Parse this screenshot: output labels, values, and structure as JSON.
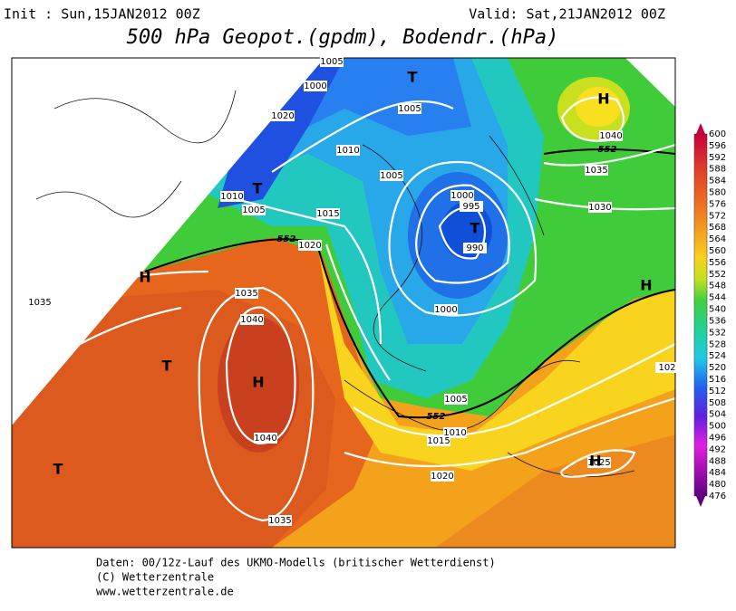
{
  "header": {
    "init": "Init : Sun,15JAN2012 00Z",
    "valid": "Valid: Sat,21JAN2012 00Z",
    "title": "500 hPa Geopot.(gpdm), Bodendr.(hPa)"
  },
  "footer": [
    "Daten: 00/12z-Lauf des UKMO-Modells (britischer Wetterdienst)",
    "(C) Wetterzentrale",
    "www.wetterzentrale.de"
  ],
  "map": {
    "pressure_labels": [
      1005,
      1000,
      1020,
      1005,
      1010,
      1005,
      1000,
      995,
      990,
      1010,
      1005,
      1015,
      1020,
      1035,
      1035,
      1040,
      1000,
      1005,
      1010,
      1015,
      1020,
      1040,
      1035,
      1040,
      1035,
      1030,
      1025,
      102
    ],
    "height_labels": [
      552,
      552,
      552
    ],
    "centers": [
      "T",
      "T",
      "T",
      "H",
      "T",
      "H",
      "T",
      "H",
      "H",
      "H"
    ]
  },
  "colorbar": {
    "levels": [
      600,
      596,
      592,
      588,
      584,
      580,
      576,
      572,
      568,
      564,
      560,
      556,
      552,
      548,
      544,
      540,
      536,
      532,
      528,
      524,
      520,
      516,
      512,
      508,
      504,
      500,
      496,
      492,
      488,
      484,
      480,
      476
    ]
  }
}
